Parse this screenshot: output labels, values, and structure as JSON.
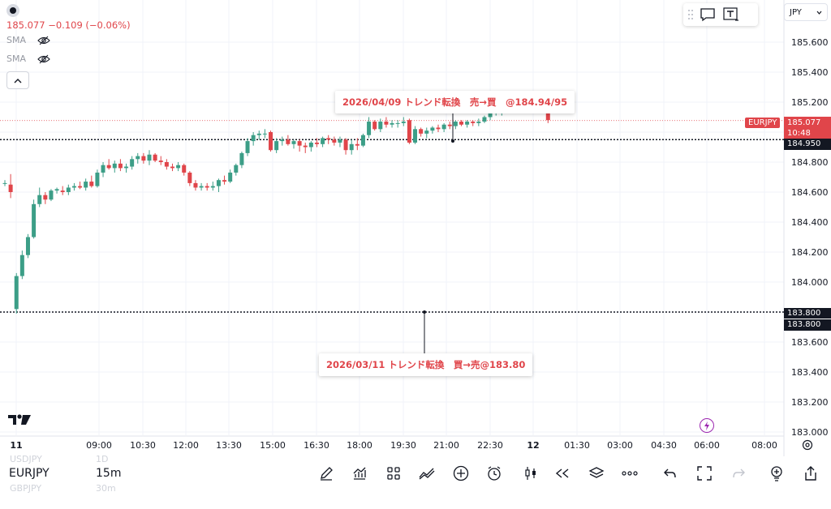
{
  "window": {
    "currency": "JPY"
  },
  "legend": {
    "price_change": "185.077 −0.109 (−0.06%)",
    "indicators": [
      "SMA",
      "SMA"
    ]
  },
  "price_axis": {
    "labels": [
      "185.600",
      "185.400",
      "185.200",
      "184.800",
      "184.600",
      "184.400",
      "184.200",
      "184.000",
      "183.600",
      "183.400",
      "183.200",
      "183.000"
    ],
    "current_price": "185.077",
    "countdown": "10:48",
    "level_1": "184.950",
    "level_2a": "183.800",
    "level_2b": "183.800",
    "symbol_flag": "EURJPY"
  },
  "time_axis": {
    "labels": [
      "11",
      "09:00",
      "10:30",
      "12:00",
      "13:30",
      "15:00",
      "16:30",
      "18:00",
      "19:30",
      "21:00",
      "22:30",
      "12",
      "01:30",
      "03:00",
      "04:30",
      "06:00",
      "08:00"
    ]
  },
  "annotations": {
    "callout_1": "2026/04/09 トレンド転換　売→買　@184.94/95",
    "callout_2": "2026/03/11 トレンド転換　買→売@183.80"
  },
  "bottom_bar": {
    "symbol": "EURJPY",
    "interval": "15m",
    "ghost_symbols": [
      "USDJPY",
      "GBPJPY"
    ],
    "ghost_intervals": [
      "1D",
      "30m"
    ],
    "tools": [
      "draw-icon",
      "indicators-icon",
      "templates-icon",
      "compare-icon",
      "add-icon",
      "alert-icon",
      "candle-type-icon",
      "replay-icon",
      "layers-icon",
      "more-icon",
      "undo-icon",
      "fullscreen-icon",
      "redo-icon",
      "ideas-icon",
      "share-icon"
    ]
  },
  "colors": {
    "up": "#26a69a",
    "up_body": "#3c9e87",
    "down": "#e0454a",
    "text": "#131722",
    "grid": "#f0f3fa"
  },
  "chart_data": {
    "type": "candlestick",
    "symbol": "EURJPY",
    "interval": "15m",
    "ylim": [
      183.0,
      185.7
    ],
    "y_ticks": [
      183.0,
      183.2,
      183.4,
      183.6,
      183.8,
      184.0,
      184.2,
      184.4,
      184.6,
      184.8,
      185.0,
      185.2,
      185.4,
      185.6
    ],
    "x_tick_labels": [
      "11",
      "09:00",
      "10:30",
      "12:00",
      "13:30",
      "15:00",
      "16:30",
      "18:00",
      "19:30",
      "21:00",
      "22:30",
      "12",
      "01:30",
      "03:00",
      "04:30",
      "06:00",
      "08:00"
    ],
    "candles_ohlc": [
      [
        184.66,
        184.68,
        184.64,
        184.66
      ],
      [
        184.65,
        184.72,
        184.56,
        184.6
      ],
      [
        183.82,
        184.06,
        183.79,
        184.04
      ],
      [
        184.04,
        184.21,
        184.02,
        184.18
      ],
      [
        184.18,
        184.32,
        184.16,
        184.3
      ],
      [
        184.3,
        184.55,
        184.29,
        184.52
      ],
      [
        184.52,
        184.63,
        184.5,
        184.58
      ],
      [
        184.58,
        184.6,
        184.52,
        184.55
      ],
      [
        184.55,
        184.62,
        184.54,
        184.61
      ],
      [
        184.61,
        184.63,
        184.59,
        184.62
      ],
      [
        184.61,
        184.64,
        184.58,
        184.6
      ],
      [
        184.6,
        184.65,
        184.58,
        184.63
      ],
      [
        184.63,
        184.66,
        184.61,
        184.64
      ],
      [
        184.64,
        184.67,
        184.62,
        184.63
      ],
      [
        184.63,
        184.69,
        184.61,
        184.67
      ],
      [
        184.67,
        184.71,
        184.63,
        184.64
      ],
      [
        184.64,
        184.75,
        184.63,
        184.73
      ],
      [
        184.73,
        184.8,
        184.7,
        184.78
      ],
      [
        184.78,
        184.82,
        184.75,
        184.76
      ],
      [
        184.76,
        184.81,
        184.73,
        184.79
      ],
      [
        184.79,
        184.82,
        184.74,
        184.76
      ],
      [
        184.76,
        184.79,
        184.73,
        184.77
      ],
      [
        184.77,
        184.84,
        184.75,
        184.82
      ],
      [
        184.82,
        184.86,
        184.79,
        184.84
      ],
      [
        184.84,
        184.86,
        184.79,
        184.81
      ],
      [
        184.81,
        184.88,
        184.78,
        184.85
      ],
      [
        184.85,
        184.86,
        184.8,
        184.81
      ],
      [
        184.81,
        184.84,
        184.78,
        184.8
      ],
      [
        184.8,
        184.82,
        184.75,
        184.77
      ],
      [
        184.77,
        184.79,
        184.74,
        184.76
      ],
      [
        184.76,
        184.8,
        184.74,
        184.78
      ],
      [
        184.78,
        184.79,
        184.71,
        184.73
      ],
      [
        184.73,
        184.74,
        184.64,
        184.66
      ],
      [
        184.66,
        184.68,
        184.61,
        184.63
      ],
      [
        184.63,
        184.66,
        184.61,
        184.64
      ],
      [
        184.64,
        184.66,
        184.61,
        184.63
      ],
      [
        184.63,
        184.67,
        184.61,
        184.64
      ],
      [
        184.64,
        184.69,
        184.6,
        184.68
      ],
      [
        184.68,
        184.71,
        184.65,
        184.67
      ],
      [
        184.67,
        184.75,
        184.66,
        184.73
      ],
      [
        184.73,
        184.79,
        184.71,
        184.78
      ],
      [
        184.78,
        184.87,
        184.76,
        184.86
      ],
      [
        184.86,
        184.96,
        184.84,
        184.94
      ],
      [
        184.94,
        185.0,
        184.91,
        184.98
      ],
      [
        184.98,
        185.01,
        184.95,
        184.99
      ],
      [
        184.99,
        185.02,
        184.96,
        184.99
      ],
      [
        185.0,
        185.01,
        184.87,
        184.88
      ],
      [
        184.88,
        184.96,
        184.86,
        184.94
      ],
      [
        184.94,
        184.97,
        184.91,
        184.95
      ],
      [
        184.95,
        184.98,
        184.91,
        184.92
      ],
      [
        184.92,
        184.95,
        184.89,
        184.94
      ],
      [
        184.94,
        184.95,
        184.87,
        184.91
      ],
      [
        184.91,
        184.93,
        184.86,
        184.9
      ],
      [
        184.9,
        184.94,
        184.87,
        184.93
      ],
      [
        184.93,
        184.96,
        184.9,
        184.92
      ],
      [
        184.92,
        184.97,
        184.9,
        184.96
      ],
      [
        184.96,
        184.98,
        184.92,
        184.95
      ],
      [
        184.95,
        184.97,
        184.91,
        184.93
      ],
      [
        184.93,
        184.97,
        184.9,
        184.95
      ],
      [
        184.95,
        184.96,
        184.85,
        184.88
      ],
      [
        184.88,
        184.95,
        184.85,
        184.92
      ],
      [
        184.92,
        184.96,
        184.88,
        184.91
      ],
      [
        184.91,
        184.99,
        184.9,
        184.98
      ],
      [
        184.98,
        185.1,
        184.96,
        185.07
      ],
      [
        185.07,
        185.08,
        185.01,
        185.02
      ],
      [
        185.02,
        185.09,
        185.0,
        185.07
      ],
      [
        185.07,
        185.1,
        185.03,
        185.05
      ],
      [
        185.05,
        185.08,
        185.03,
        185.06
      ],
      [
        185.06,
        185.08,
        185.03,
        185.06
      ],
      [
        185.06,
        185.1,
        185.04,
        185.07
      ],
      [
        185.08,
        185.09,
        184.92,
        184.93
      ],
      [
        184.93,
        185.04,
        184.92,
        185.02
      ],
      [
        185.02,
        185.03,
        184.97,
        184.99
      ],
      [
        184.99,
        185.03,
        184.96,
        185.01
      ],
      [
        185.01,
        185.04,
        184.99,
        185.03
      ],
      [
        185.03,
        185.05,
        185.0,
        185.02
      ],
      [
        185.02,
        185.06,
        185.0,
        185.05
      ],
      [
        185.05,
        185.07,
        185.02,
        185.04
      ],
      [
        185.04,
        185.08,
        185.02,
        185.07
      ],
      [
        185.07,
        185.08,
        185.04,
        185.05
      ],
      [
        185.05,
        185.08,
        185.03,
        185.07
      ],
      [
        185.07,
        185.08,
        185.04,
        185.06
      ],
      [
        185.06,
        185.09,
        185.04,
        185.07
      ],
      [
        185.07,
        185.11,
        185.06,
        185.1
      ],
      [
        185.1,
        185.14,
        185.08,
        185.13
      ],
      [
        185.13,
        185.15,
        185.11,
        185.14
      ],
      [
        185.14,
        185.17,
        185.11,
        185.15
      ],
      [
        185.15,
        185.19,
        185.13,
        185.18
      ],
      [
        185.18,
        185.22,
        185.16,
        185.21
      ],
      [
        185.21,
        185.23,
        185.18,
        185.2
      ],
      [
        185.2,
        185.23,
        185.18,
        185.22
      ],
      [
        185.22,
        185.24,
        185.19,
        185.21
      ],
      [
        185.21,
        185.25,
        185.19,
        185.23
      ],
      [
        185.23,
        185.26,
        185.2,
        185.22
      ],
      [
        185.2,
        185.21,
        185.06,
        185.08
      ]
    ],
    "horizontal_lines": [
      {
        "price": 184.95,
        "style": "dotted"
      },
      {
        "price": 183.8,
        "style": "dotted"
      },
      {
        "price": 185.077,
        "style": "dotted-thin",
        "label": "current"
      }
    ],
    "annotations": [
      {
        "text": "2026/04/09 トレンド転換　売→買　@184.94/95"
      },
      {
        "text": "2026/03/11 トレンド転換　買→売@183.80"
      }
    ]
  }
}
